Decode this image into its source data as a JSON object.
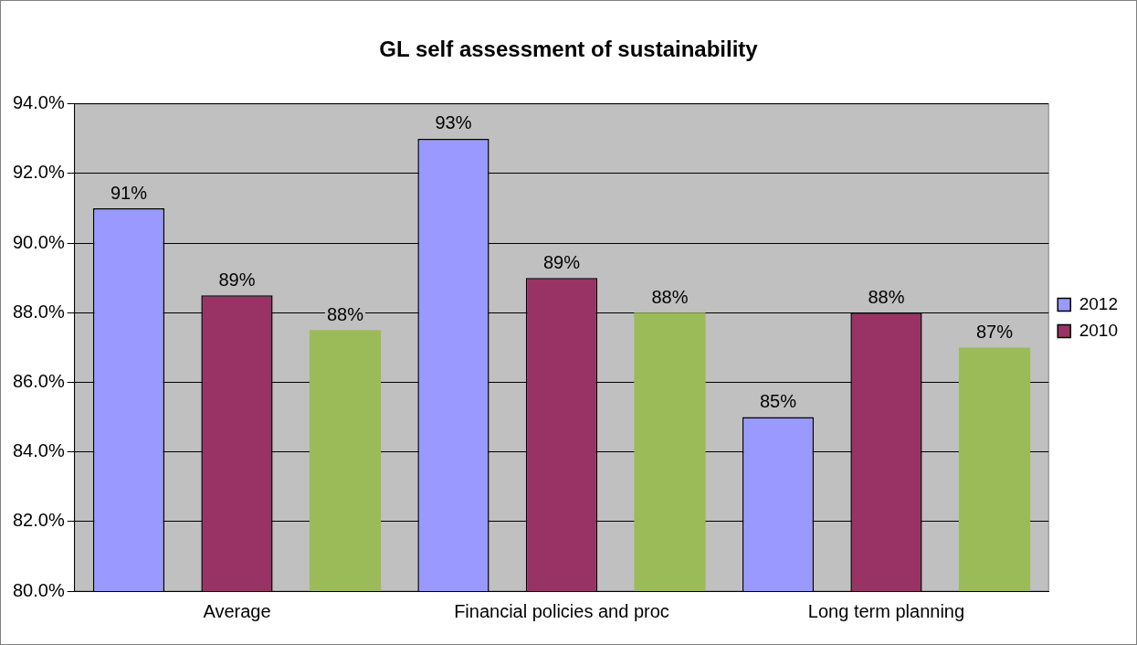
{
  "chart_data": {
    "type": "bar",
    "title": "GL self assessment of sustainability",
    "categories": [
      "Average",
      "Financial policies and proc",
      "Long term planning"
    ],
    "series": [
      {
        "name": "2012",
        "color": "#9999ff",
        "values": [
          91,
          93,
          85
        ],
        "value_labels": [
          "91%",
          "93%",
          "85%"
        ]
      },
      {
        "name": "2010",
        "color": "#993366",
        "values": [
          88.5,
          89,
          88
        ],
        "value_labels": [
          "89%",
          "89%",
          "88%"
        ]
      },
      {
        "color": "#9bbb59",
        "values": [
          87.5,
          88,
          87
        ],
        "value_labels": [
          "88%",
          "88%",
          "87%"
        ]
      }
    ],
    "ylim": [
      80,
      94
    ],
    "yticks": [
      {
        "value": 80,
        "label": "80.0%"
      },
      {
        "value": 82,
        "label": "82.0%"
      },
      {
        "value": 84,
        "label": "84.0%"
      },
      {
        "value": 86,
        "label": "86.0%"
      },
      {
        "value": 88,
        "label": "88.0%"
      },
      {
        "value": 90,
        "label": "90.0%"
      },
      {
        "value": 92,
        "label": "92.0%"
      },
      {
        "value": 94,
        "label": "94.0%"
      }
    ],
    "grid": "y",
    "legend": "right"
  }
}
